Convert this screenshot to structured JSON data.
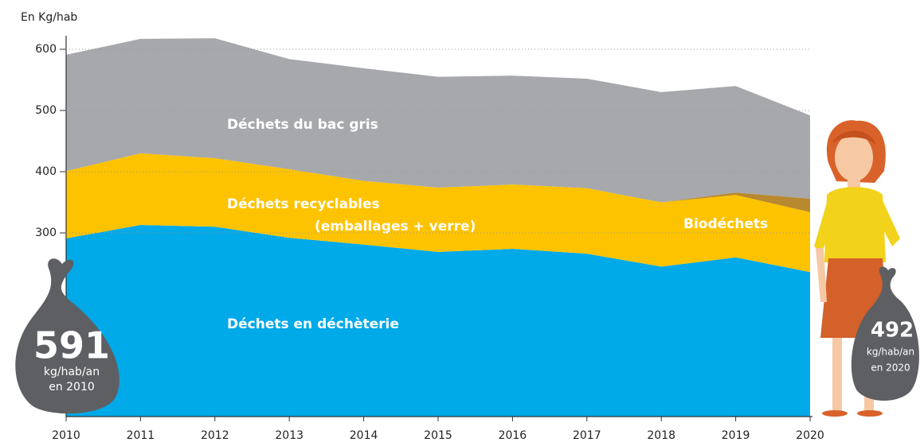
{
  "chart_data": {
    "type": "stacked-area",
    "y_axis_label": "En Kg/hab",
    "x": [
      2010,
      2011,
      2012,
      2013,
      2014,
      2015,
      2016,
      2017,
      2018,
      2019,
      2020
    ],
    "xlim": [
      2010,
      2020
    ],
    "xticks": [
      2010,
      2011,
      2012,
      2013,
      2014,
      2015,
      2016,
      2017,
      2018,
      2019,
      2020
    ],
    "ylim": [
      0,
      620
    ],
    "yticks": [
      300,
      400,
      500,
      600
    ],
    "grid": true,
    "series": [
      {
        "name": "Déchets en déchèterie",
        "color": "#00a9e8",
        "values": [
          291,
          313,
          310,
          292,
          281,
          269,
          274,
          266,
          245,
          260,
          236
        ]
      },
      {
        "name": "Déchets recyclables (emballages + verre)",
        "color": "#fdc300",
        "values": [
          110,
          117,
          112,
          112,
          104,
          105,
          105,
          107,
          105,
          102,
          98
        ]
      },
      {
        "name": "Biodéchets",
        "color": "#b8892f",
        "values": [
          0,
          0,
          0,
          0,
          0,
          0,
          0,
          0,
          0,
          4,
          22
        ]
      },
      {
        "name": "Déchets du bac gris",
        "color": "#a7a8ac",
        "values": [
          190,
          187,
          196,
          180,
          184,
          181,
          178,
          179,
          180,
          174,
          136
        ]
      }
    ],
    "area_labels": {
      "gris": "Déchets du bac gris",
      "recyclables_1": "Déchets recyclables",
      "recyclables_2": "(emballages + verre)",
      "bio": "Biodéchets",
      "decheterie": "Déchets en déchèterie"
    },
    "annotations": {
      "start": {
        "value": "591",
        "unit": "kg/hab/an",
        "year": "en 2010"
      },
      "end": {
        "value": "492",
        "unit": "kg/hab/an",
        "year": "en 2020"
      }
    }
  }
}
